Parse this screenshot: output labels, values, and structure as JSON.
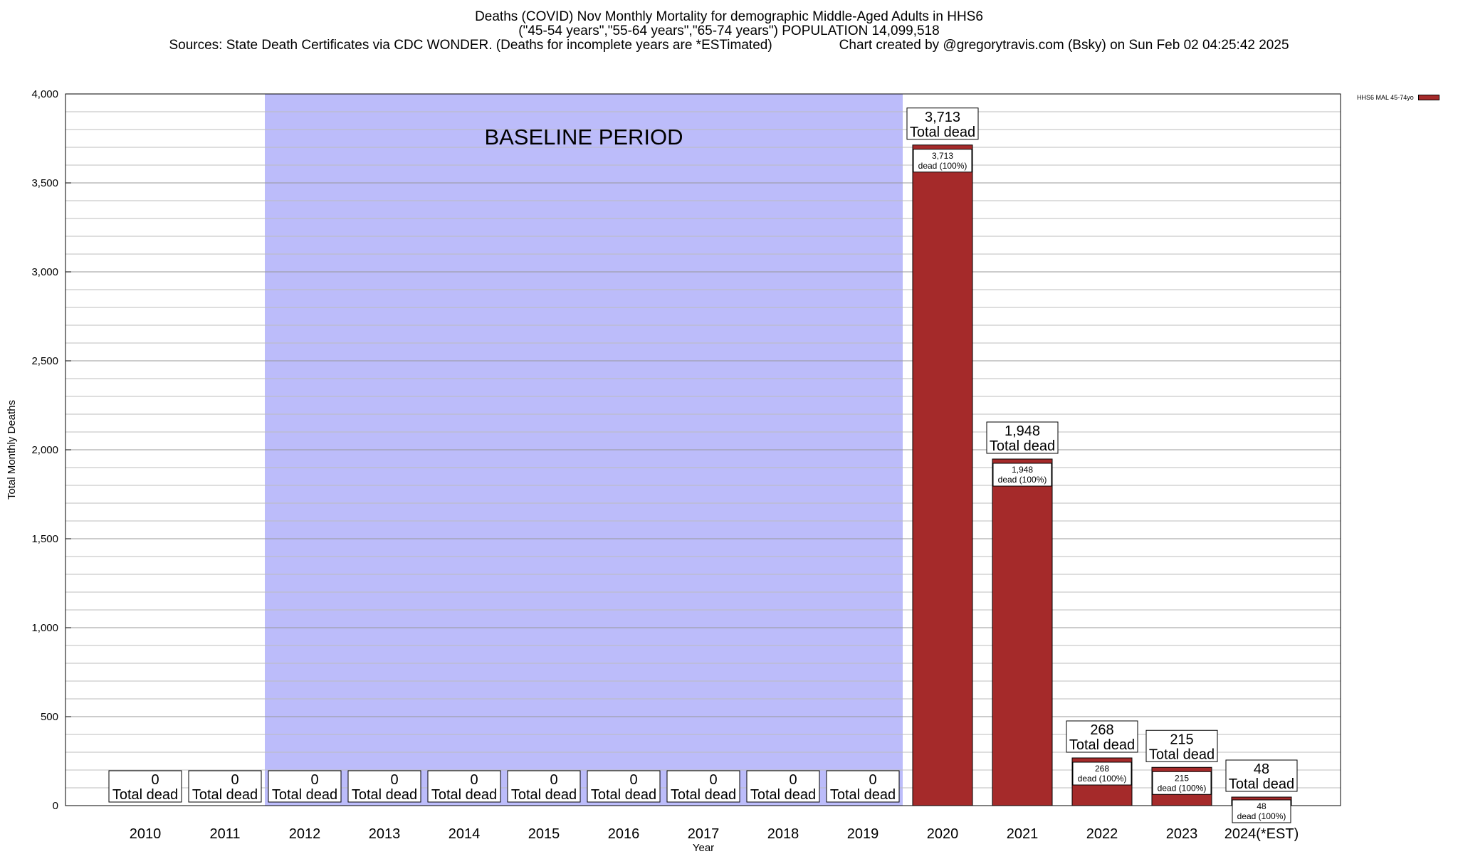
{
  "chart_data": {
    "type": "bar",
    "title": "Deaths (COVID) Nov Monthly Mortality for demographic Middle-Aged Adults in HHS6",
    "subtitle": "(\"45-54 years\",\"55-64 years\",\"65-74 years\") POPULATION 14,099,518",
    "source_line": "Sources: State Death Certificates via CDC WONDER. (Deaths for incomplete years are *ESTimated)",
    "credit_line": "Chart created by @gregorytravis.com (Bsky) on Sun Feb 02 04:25:42 2025",
    "xlabel": "Year",
    "ylabel": "Total Monthly Deaths",
    "ylim": [
      0,
      4000
    ],
    "yticks": [
      0,
      500,
      1000,
      1500,
      2000,
      2500,
      3000,
      3500,
      4000
    ],
    "ytick_labels": [
      "0",
      "500",
      "1,000",
      "1,500",
      "2,000",
      "2,500",
      "3,000",
      "3,500",
      "4,000"
    ],
    "categories": [
      "2010",
      "2011",
      "2012",
      "2013",
      "2014",
      "2015",
      "2016",
      "2017",
      "2018",
      "2019",
      "2020",
      "2021",
      "2022",
      "2023",
      "2024(*EST)"
    ],
    "series": [
      {
        "name": "HHS6 MAL 45-74yo",
        "color": "#a52a2a",
        "values": [
          0,
          0,
          0,
          0,
          0,
          0,
          0,
          0,
          0,
          0,
          3713,
          1948,
          268,
          215,
          48
        ]
      }
    ],
    "value_labels": [
      "0",
      "0",
      "0",
      "0",
      "0",
      "0",
      "0",
      "0",
      "0",
      "0",
      "3,713",
      "1,948",
      "268",
      "215",
      "48"
    ],
    "total_label_text": "Total dead",
    "inner_label_suffix": "dead (100%)",
    "baseline_period": {
      "label": "BASELINE PERIOD",
      "from": "2012",
      "to": "2019",
      "color": "#bcbcfa"
    },
    "grid": true,
    "legend_position": "top-right"
  }
}
